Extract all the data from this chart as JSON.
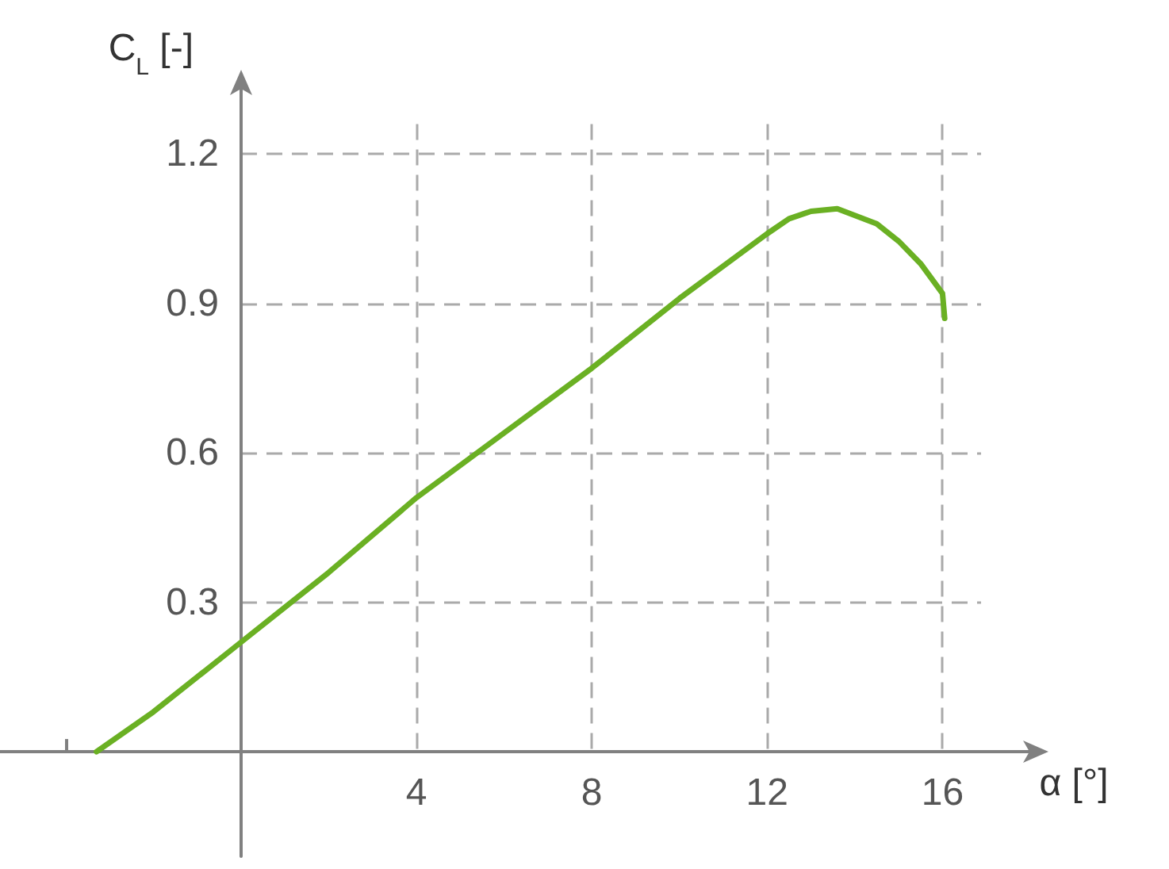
{
  "chart_data": {
    "type": "line",
    "xlabel": "α [°]",
    "ylabel": "C$_{L}$ [-]",
    "series": [
      {
        "color": "#6ab023",
        "x": [
          -3.3,
          -2,
          0,
          2,
          4,
          6,
          8,
          10,
          12,
          12.5,
          13,
          13.6,
          14.5,
          15,
          15.5,
          16,
          16.05
        ],
        "values": [
          0,
          0.08,
          0.22,
          0.36,
          0.51,
          0.64,
          0.77,
          0.91,
          1.04,
          1.07,
          1.085,
          1.09,
          1.06,
          1.025,
          0.98,
          0.92,
          0.87
        ]
      }
    ],
    "xlim": [
      -5.5,
      18.2
    ],
    "ylim": [
      -0.21,
      1.35
    ],
    "xticks": [
      {
        "value": -4,
        "label": null
      },
      4,
      8,
      12,
      16
    ],
    "yticks": [
      0.3,
      0.6,
      0.9,
      1.2
    ],
    "grid": true,
    "marker": "none",
    "line_style": "solid"
  }
}
